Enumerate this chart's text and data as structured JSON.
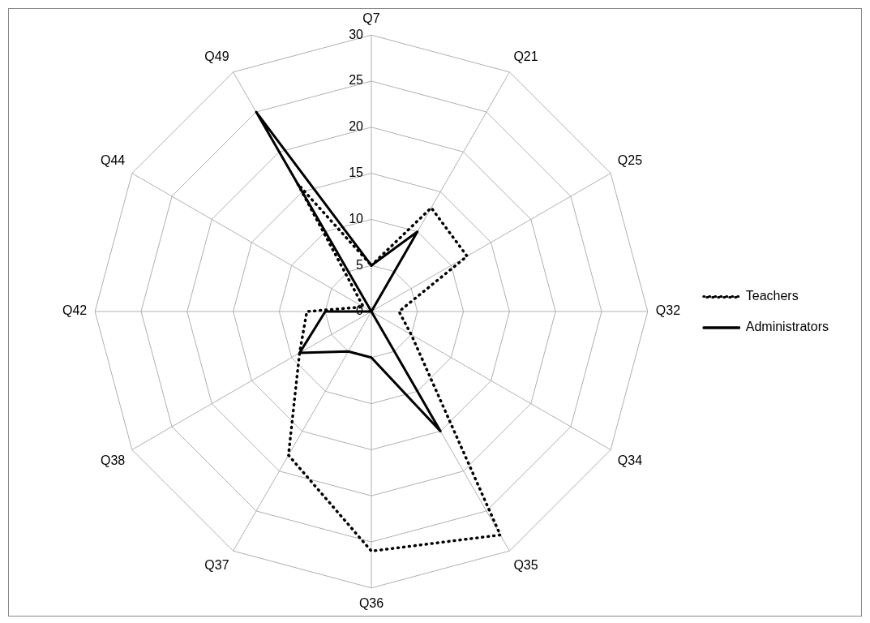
{
  "chart_data": {
    "type": "radar",
    "categories": [
      "Q7",
      "Q21",
      "Q25",
      "Q32",
      "Q34",
      "Q35",
      "Q36",
      "Q37",
      "Q38",
      "Q42",
      "Q44",
      "Q49"
    ],
    "series": [
      {
        "name": "Teachers",
        "color": "#000000",
        "line_style": "dotted",
        "values": [
          5,
          13,
          12,
          3,
          5,
          28,
          26,
          18,
          9,
          7,
          1,
          16
        ]
      },
      {
        "name": "Administrators",
        "color": "#000000",
        "line_style": "solid",
        "values": [
          5,
          10,
          0,
          0,
          0,
          15,
          5,
          5,
          9,
          5,
          0,
          25
        ]
      }
    ],
    "ylim": [
      0,
      30
    ],
    "yticks": [
      0,
      5,
      10,
      15,
      20,
      25,
      30
    ],
    "grid": true,
    "legend": "right",
    "marker": "none"
  }
}
